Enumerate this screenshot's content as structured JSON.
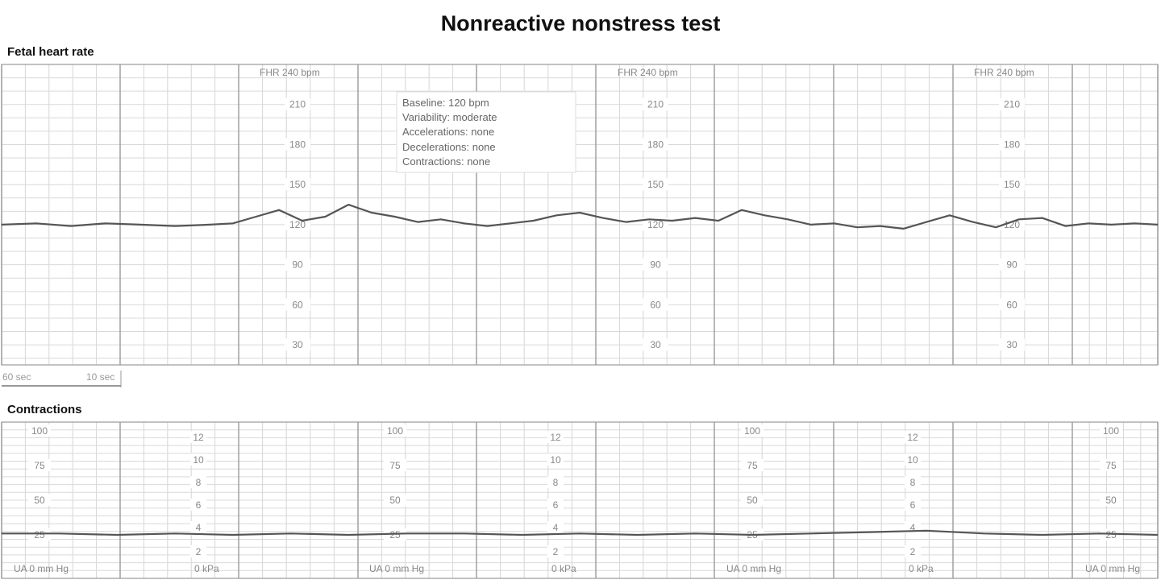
{
  "title": "Nonreactive nonstress test",
  "fhr_panel": {
    "label": "Fetal heart rate",
    "header_label": "FHR 240 bpm",
    "header_label_count": 3,
    "y_ticks": [
      210,
      180,
      150,
      120,
      90,
      60,
      30
    ],
    "annotation": [
      "Baseline: 120 bpm",
      "Variability: moderate",
      "Accelerations: none",
      "Decelerations: none",
      "Contractions: none"
    ],
    "scale_bar": {
      "left": "60 sec",
      "right": "10 sec"
    }
  },
  "uc_panel": {
    "label": "Contractions",
    "ua_ticks": [
      100,
      75,
      50,
      25
    ],
    "kpa_ticks": [
      12,
      10,
      8,
      6,
      4,
      2
    ],
    "ua_unit_label": "UA  0  mm Hg",
    "kpa_unit_label": "0  kPa"
  },
  "chart_data": [
    {
      "type": "line",
      "name": "Fetal heart rate",
      "xlabel": "",
      "ylabel": "",
      "ylim": [
        0,
        240
      ],
      "y_ticks": [
        30,
        60,
        90,
        120,
        150,
        180,
        210
      ],
      "x": [
        0,
        3,
        6,
        9,
        12,
        15,
        18,
        20,
        22,
        24,
        26,
        28,
        30,
        32,
        34,
        36,
        38,
        40,
        42,
        44,
        46,
        48,
        50,
        52,
        54,
        56,
        58,
        60,
        62,
        64,
        66,
        68,
        70,
        72,
        74,
        76,
        78,
        80,
        82,
        84,
        86,
        88,
        90,
        92,
        94,
        96,
        98,
        100
      ],
      "y": [
        120,
        121,
        119,
        121,
        120,
        119,
        120,
        121,
        126,
        131,
        123,
        126,
        135,
        129,
        126,
        122,
        124,
        121,
        119,
        121,
        123,
        127,
        129,
        125,
        122,
        124,
        123,
        125,
        123,
        131,
        127,
        124,
        120,
        121,
        118,
        119,
        117,
        122,
        127,
        122,
        118,
        124,
        125,
        119,
        121,
        120,
        121,
        120
      ],
      "baseline": 120
    },
    {
      "type": "line",
      "name": "Contractions",
      "xlabel": "",
      "ylabel": "",
      "ylim": [
        0,
        100
      ],
      "y_ticks": [
        25,
        50,
        75,
        100
      ],
      "x": [
        0,
        5,
        10,
        15,
        20,
        25,
        30,
        35,
        40,
        45,
        50,
        55,
        60,
        65,
        70,
        75,
        80,
        85,
        90,
        95,
        100
      ],
      "y": [
        26,
        26,
        25,
        26,
        25,
        26,
        25,
        26,
        26,
        25,
        26,
        25,
        26,
        25,
        26,
        27,
        28,
        26,
        25,
        26,
        25
      ]
    }
  ]
}
